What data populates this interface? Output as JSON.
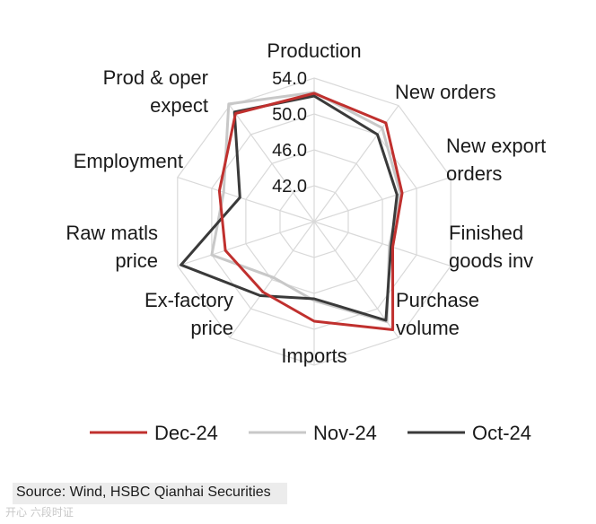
{
  "chart_data": {
    "type": "radar",
    "categories": [
      [
        "Production"
      ],
      [
        "New orders"
      ],
      [
        "New export",
        "orders"
      ],
      [
        "Finished",
        "goods inv"
      ],
      [
        "Purchase",
        "volume"
      ],
      [
        "Imports"
      ],
      [
        "Ex-factory",
        "price"
      ],
      [
        "Raw matls",
        "price"
      ],
      [
        "Employment"
      ],
      [
        "Prod & oper",
        "expect"
      ]
    ],
    "rlim": [
      38.0,
      54.0
    ],
    "ticks": [
      "42.0",
      "46.0",
      "50.0",
      "54.0"
    ],
    "tick_values": [
      42,
      46,
      50,
      54
    ],
    "grid": true,
    "series": [
      {
        "name": "Dec-24",
        "color": "#c0302e",
        "values": [
          52.3,
          51.6,
          48.3,
          47.2,
          52.9,
          49.1,
          47.7,
          48.4,
          49.1,
          52.9
        ]
      },
      {
        "name": "Nov-24",
        "color": "#c8c8c8",
        "values": [
          52.4,
          50.9,
          48.1,
          46.8,
          51.8,
          46.8,
          45.7,
          50.0,
          48.6,
          54.2
        ]
      },
      {
        "name": "Oct-24",
        "color": "#3a3a3a",
        "values": [
          52.0,
          50.0,
          47.7,
          47.0,
          51.6,
          46.6,
          48.2,
          53.6,
          46.7,
          53.1
        ]
      }
    ],
    "legend_position": "bottom"
  },
  "source": "Source: Wind, HSBC Qianhai Securities",
  "watermark": "开心 六段时证"
}
